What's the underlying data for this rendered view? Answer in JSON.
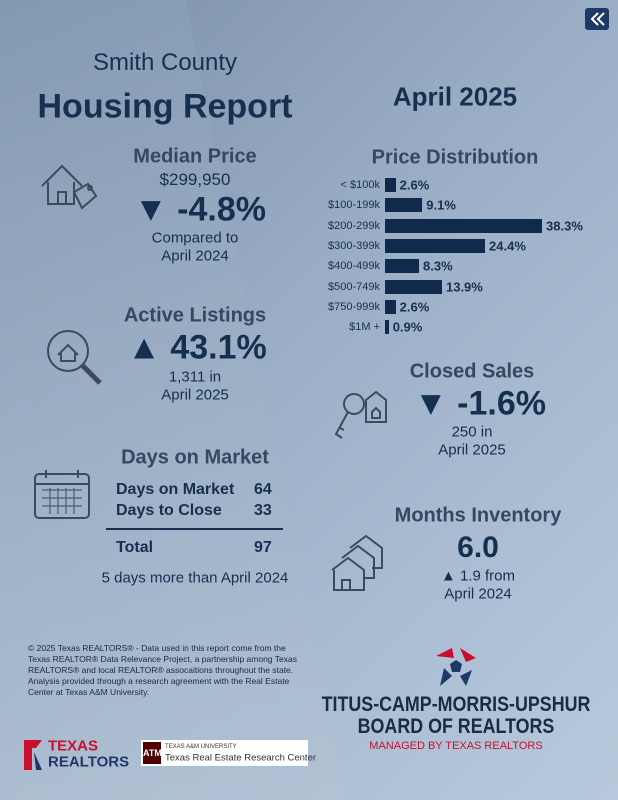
{
  "header": {
    "county": "Smith County",
    "title": "Housing Report",
    "period": "April 2025"
  },
  "median_price": {
    "title": "Median Price",
    "value": "$299,950",
    "change": "▼ -4.8%",
    "note_line1": "Compared to",
    "note_line2": "April 2024"
  },
  "price_distribution": {
    "title": "Price Distribution",
    "categories": [
      "< $100k",
      "$100-199k",
      "$200-299k",
      "$300-399k",
      "$400-499k",
      "$500-749k",
      "$750-999k",
      "$1M +"
    ],
    "values": [
      2.6,
      9.1,
      38.3,
      24.4,
      8.3,
      13.9,
      2.6,
      0.9
    ],
    "value_labels": [
      "2.6%",
      "9.1%",
      "38.3%",
      "24.4%",
      "8.3%",
      "13.9%",
      "2.6%",
      "0.9%"
    ]
  },
  "active_listings": {
    "title": "Active Listings",
    "change": "▲ 43.1%",
    "note_line1": "1,311 in",
    "note_line2": "April 2025"
  },
  "closed_sales": {
    "title": "Closed Sales",
    "change": "▼ -1.6%",
    "note_line1": "250 in",
    "note_line2": "April 2025"
  },
  "days_on_market": {
    "title": "Days on Market",
    "rows": [
      [
        "Days on Market",
        "64"
      ],
      [
        "Days to Close",
        "33"
      ]
    ],
    "total": [
      "Total",
      "97"
    ],
    "note": "5 days more than April 2024"
  },
  "months_inventory": {
    "title": "Months Inventory",
    "value": "6.0",
    "note_line1": "▲ 1.9 from",
    "note_line2": "April 2024"
  },
  "footer": {
    "disclaimer": "© 2025 Texas REALTORS® - Data used in this report come from the Texas REALTOR® Data Relevance Project, a partnership among Texas REALTORS® and local REALTOR® assocaitions throughout the state. Analysis provided through a research agreement with the Real Estate Center at Texas A&M University.",
    "tr_logo_line1": "TEXAS",
    "tr_logo_line2": "REALTORS",
    "tamu_line1": "TEXAS A&M UNIVERSITY",
    "tamu_line2": "Texas Real Estate Research Center"
  },
  "board": {
    "line1": "TITUS-CAMP-MORRIS-UPSHUR",
    "line2": "BOARD OF REALTORS",
    "line3": "MANAGED BY TEXAS REALTORS"
  }
}
